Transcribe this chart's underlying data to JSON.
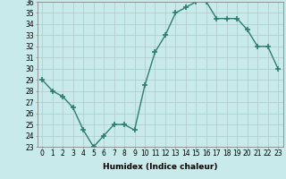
{
  "x": [
    0,
    1,
    2,
    3,
    4,
    5,
    6,
    7,
    8,
    9,
    10,
    11,
    12,
    13,
    14,
    15,
    16,
    17,
    18,
    19,
    20,
    21,
    22,
    23
  ],
  "y": [
    29,
    28,
    27.5,
    26.5,
    24.5,
    23,
    24,
    25,
    25,
    24.5,
    28.5,
    31.5,
    33,
    35,
    35.5,
    36,
    36,
    34.5,
    34.5,
    34.5,
    33.5,
    32,
    32,
    30
  ],
  "line_color": "#2e7d6e",
  "marker": "+",
  "marker_size": 4,
  "bg_color": "#c8eaea",
  "grid_color": "#b0c8c8",
  "xlabel": "Humidex (Indice chaleur)",
  "ylim": [
    23,
    36
  ],
  "xlim": [
    -0.5,
    23.5
  ],
  "yticks": [
    23,
    24,
    25,
    26,
    27,
    28,
    29,
    30,
    31,
    32,
    33,
    34,
    35,
    36
  ],
  "xticks": [
    0,
    1,
    2,
    3,
    4,
    5,
    6,
    7,
    8,
    9,
    10,
    11,
    12,
    13,
    14,
    15,
    16,
    17,
    18,
    19,
    20,
    21,
    22,
    23
  ],
  "xlabel_fontsize": 6.5,
  "tick_fontsize": 5.5,
  "linewidth": 1.0,
  "marker_linewidth": 1.2
}
